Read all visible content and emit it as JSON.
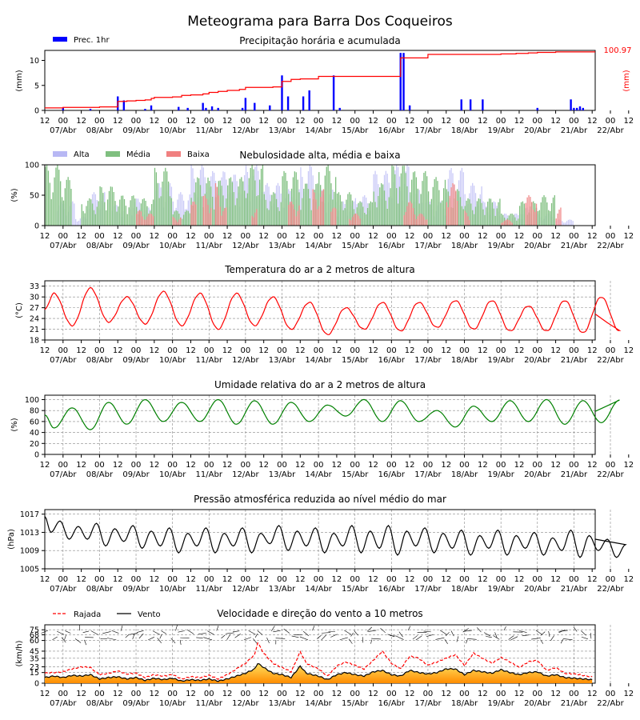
{
  "title": "Meteograma para Barra Dos Coqueiros",
  "x_axis": {
    "hour_ticks": [
      "12",
      "00",
      "12",
      "00",
      "12",
      "00",
      "12",
      "00",
      "12",
      "00",
      "12",
      "00",
      "12",
      "00",
      "12",
      "00",
      "12",
      "00",
      "12",
      "00",
      "12",
      "00",
      "12",
      "00",
      "12",
      "00",
      "12",
      "00",
      "12",
      "00",
      "12",
      "00",
      "12"
    ],
    "date_labels": [
      "07/Abr",
      "08/Abr",
      "09/Abr",
      "10/Abr",
      "11/Abr",
      "12/Abr",
      "13/Abr",
      "14/Abr",
      "15/Abr",
      "16/Abr",
      "17/Abr",
      "18/Abr",
      "19/Abr",
      "20/Abr",
      "21/Abr",
      "22/Abr"
    ]
  },
  "chart_data": [
    {
      "type": "bar",
      "title": "Precipitação horária e acumulada",
      "ylabel": "(mm)",
      "ylabel_right": "(mm)",
      "right_value_label": "100.97",
      "ylim": [
        0,
        12
      ],
      "yticks": [
        0,
        5,
        10
      ],
      "legend": [
        "Prec. 1hr"
      ],
      "colors": {
        "bars": "#0000ff",
        "accum": "#ff0000"
      },
      "series": [
        {
          "name": "Prec. 1hr",
          "x_hours": [
            12,
            30,
            48,
            52,
            66,
            70,
            88,
            94,
            104,
            106,
            110,
            114,
            130,
            132,
            138,
            148,
            156,
            160,
            170,
            174,
            190,
            194,
            234,
            236,
            240,
            274,
            280,
            288,
            324,
            346,
            348,
            350,
            352,
            354
          ],
          "values": [
            0.5,
            0.3,
            2.8,
            2.0,
            0.3,
            1.0,
            0.7,
            0.5,
            1.5,
            0.5,
            0.8,
            0.5,
            0.5,
            2.5,
            1.5,
            1.0,
            7.0,
            2.8,
            2.8,
            4.0,
            7.0,
            0.5,
            11.5,
            11.5,
            1.0,
            2.2,
            2.2,
            2.2,
            0.5,
            2.2,
            0.5,
            0.5,
            0.8,
            0.5
          ]
        }
      ],
      "accumulated_steps": [
        [
          0,
          0.5
        ],
        [
          12,
          0.6
        ],
        [
          36,
          0.7
        ],
        [
          48,
          1.8
        ],
        [
          54,
          1.9
        ],
        [
          60,
          2.0
        ],
        [
          66,
          2.1
        ],
        [
          70,
          2.4
        ],
        [
          72,
          2.6
        ],
        [
          84,
          2.7
        ],
        [
          90,
          3.0
        ],
        [
          96,
          3.1
        ],
        [
          104,
          3.3
        ],
        [
          108,
          3.6
        ],
        [
          114,
          3.8
        ],
        [
          120,
          4.0
        ],
        [
          128,
          4.2
        ],
        [
          132,
          4.6
        ],
        [
          150,
          4.7
        ],
        [
          156,
          5.8
        ],
        [
          162,
          6.2
        ],
        [
          168,
          6.3
        ],
        [
          180,
          6.8
        ],
        [
          216,
          6.8
        ],
        [
          232,
          6.8
        ],
        [
          234,
          10.5
        ],
        [
          248,
          10.5
        ],
        [
          252,
          11.2
        ],
        [
          300,
          11.3
        ],
        [
          310,
          11.4
        ],
        [
          318,
          11.5
        ],
        [
          324,
          11.6
        ],
        [
          336,
          11.7
        ],
        [
          352,
          11.7
        ]
      ]
    },
    {
      "type": "bar",
      "title": "Nebulosidade alta, média e baixa",
      "ylabel": "(%)",
      "ylim": [
        0,
        100
      ],
      "yticks": [
        0,
        50,
        100
      ],
      "legend": [
        "Alta",
        "Média",
        "Baixa"
      ],
      "colors": {
        "Alta": "#b8b8f4",
        "Média": "#7fbf7f",
        "Baixa": "#f08080"
      },
      "high_cloud_blocks": [
        [
          8,
          20,
          40
        ],
        [
          20,
          28,
          15
        ],
        [
          28,
          40,
          55
        ],
        [
          44,
          52,
          35
        ],
        [
          56,
          64,
          45
        ],
        [
          64,
          72,
          30
        ],
        [
          72,
          84,
          70
        ],
        [
          84,
          96,
          55
        ],
        [
          96,
          108,
          100
        ],
        [
          108,
          120,
          90
        ],
        [
          120,
          132,
          85
        ],
        [
          132,
          144,
          100
        ],
        [
          144,
          156,
          70
        ],
        [
          156,
          168,
          60
        ],
        [
          168,
          180,
          100
        ],
        [
          180,
          192,
          60
        ],
        [
          192,
          204,
          40
        ],
        [
          204,
          216,
          50
        ],
        [
          216,
          228,
          90
        ],
        [
          228,
          240,
          100
        ],
        [
          240,
          252,
          60
        ],
        [
          252,
          264,
          40
        ],
        [
          264,
          276,
          95
        ],
        [
          276,
          288,
          70
        ],
        [
          288,
          300,
          40
        ],
        [
          300,
          312,
          20
        ],
        [
          312,
          324,
          30
        ],
        [
          324,
          336,
          20
        ],
        [
          336,
          348,
          10
        ]
      ],
      "mid_cloud_blocks": [
        [
          0,
          12,
          100
        ],
        [
          12,
          18,
          80
        ],
        [
          24,
          36,
          45
        ],
        [
          36,
          48,
          65
        ],
        [
          48,
          60,
          50
        ],
        [
          60,
          72,
          45
        ],
        [
          72,
          84,
          95
        ],
        [
          84,
          96,
          25
        ],
        [
          96,
          108,
          80
        ],
        [
          108,
          120,
          75
        ],
        [
          120,
          132,
          80
        ],
        [
          132,
          144,
          100
        ],
        [
          144,
          156,
          55
        ],
        [
          156,
          168,
          90
        ],
        [
          168,
          180,
          70
        ],
        [
          180,
          192,
          100
        ],
        [
          192,
          204,
          55
        ],
        [
          204,
          216,
          40
        ],
        [
          216,
          228,
          70
        ],
        [
          228,
          240,
          100
        ],
        [
          240,
          252,
          90
        ],
        [
          252,
          264,
          80
        ],
        [
          264,
          276,
          60
        ],
        [
          276,
          288,
          45
        ],
        [
          288,
          300,
          45
        ],
        [
          300,
          312,
          20
        ],
        [
          312,
          324,
          40
        ],
        [
          324,
          336,
          50
        ]
      ],
      "low_cloud_blocks": [
        [
          60,
          64,
          25
        ],
        [
          64,
          72,
          20
        ],
        [
          84,
          90,
          15
        ],
        [
          96,
          100,
          40
        ],
        [
          104,
          110,
          50
        ],
        [
          112,
          116,
          70
        ],
        [
          116,
          120,
          30
        ],
        [
          136,
          140,
          30
        ],
        [
          160,
          168,
          40
        ],
        [
          176,
          184,
          60
        ],
        [
          188,
          192,
          30
        ],
        [
          200,
          208,
          20
        ],
        [
          236,
          244,
          40
        ],
        [
          244,
          252,
          20
        ],
        [
          264,
          272,
          70
        ],
        [
          276,
          280,
          25
        ],
        [
          300,
          308,
          10
        ],
        [
          316,
          324,
          50
        ],
        [
          336,
          340,
          30
        ]
      ]
    },
    {
      "type": "line",
      "title": "Temperatura do ar a 2 metros de altura",
      "ylabel": "(°C)",
      "ylim": [
        18,
        34.5
      ],
      "yticks": [
        18,
        21,
        24,
        27,
        30,
        33
      ],
      "colors": {
        "line": "#ff0000"
      },
      "daily_max": [
        31.0,
        32.5,
        30.0,
        31.5,
        31.0,
        31.0,
        30.0,
        28.5,
        27.0,
        28.5,
        28.5,
        29.0,
        29.0,
        27.5,
        29.0,
        30.0
      ],
      "daily_min": [
        22.0,
        23.0,
        22.5,
        22.0,
        21.0,
        22.0,
        21.0,
        19.5,
        21.0,
        20.5,
        21.5,
        21.0,
        20.5,
        20.5,
        20.0,
        20.5
      ]
    },
    {
      "type": "line",
      "title": "Umidade relativa do ar a 2 metros de altura",
      "ylabel": "(%)",
      "ylim": [
        0,
        108
      ],
      "yticks": [
        0,
        20,
        40,
        60,
        80,
        100
      ],
      "colors": {
        "line": "#008000"
      },
      "daily_max": [
        85,
        95,
        100,
        95,
        100,
        98,
        95,
        90,
        100,
        98,
        80,
        88,
        98,
        100,
        98,
        99
      ],
      "daily_min": [
        48,
        45,
        55,
        60,
        60,
        55,
        55,
        60,
        70,
        60,
        60,
        50,
        60,
        60,
        55,
        58
      ]
    },
    {
      "type": "line",
      "title": "Pressão atmosférica reduzida ao nível médio do mar",
      "ylabel": "(hPa)",
      "ylim": [
        1005,
        1018
      ],
      "yticks": [
        1005,
        1009,
        1013,
        1017
      ],
      "colors": {
        "line": "#000000"
      },
      "start_value": 1016.5,
      "daily_max": [
        1015.5,
        1015.0,
        1014.5,
        1014.0,
        1014.0,
        1014.0,
        1014.5,
        1014.0,
        1014.5,
        1014.5,
        1014.0,
        1013.5,
        1013.5,
        1013.0,
        1013.5,
        1011.5
      ],
      "daily_min": [
        1011.5,
        1010.0,
        1009.5,
        1008.5,
        1008.5,
        1008.5,
        1009.0,
        1008.5,
        1008.5,
        1008.0,
        1008.5,
        1008.0,
        1008.0,
        1008.0,
        1007.5,
        1007.5
      ]
    },
    {
      "type": "area",
      "title": "Velocidade e direção do vento a 10 metros",
      "ylabel": "(km/h)",
      "ylim": [
        0,
        82
      ],
      "yticks": [
        0,
        15,
        23,
        35,
        45,
        60,
        68,
        75
      ],
      "legend": [
        "Rajada",
        "Vento"
      ],
      "colors": {
        "gust": "#ff0000",
        "wind": "#000000",
        "fill_low": "#ffd700",
        "fill_high": "#ff8c00"
      },
      "wind_profile": [
        [
          0,
          8
        ],
        [
          6,
          10
        ],
        [
          12,
          8
        ],
        [
          18,
          11
        ],
        [
          24,
          10
        ],
        [
          30,
          12
        ],
        [
          36,
          6
        ],
        [
          42,
          8
        ],
        [
          48,
          9
        ],
        [
          54,
          6
        ],
        [
          60,
          8
        ],
        [
          66,
          4
        ],
        [
          72,
          7
        ],
        [
          78,
          5
        ],
        [
          84,
          7
        ],
        [
          90,
          3
        ],
        [
          96,
          5
        ],
        [
          102,
          4
        ],
        [
          108,
          6
        ],
        [
          114,
          3
        ],
        [
          120,
          6
        ],
        [
          126,
          10
        ],
        [
          132,
          14
        ],
        [
          138,
          20
        ],
        [
          140,
          28
        ],
        [
          144,
          22
        ],
        [
          150,
          14
        ],
        [
          156,
          12
        ],
        [
          162,
          8
        ],
        [
          168,
          24
        ],
        [
          172,
          14
        ],
        [
          180,
          10
        ],
        [
          186,
          5
        ],
        [
          192,
          12
        ],
        [
          198,
          15
        ],
        [
          204,
          12
        ],
        [
          210,
          10
        ],
        [
          216,
          16
        ],
        [
          222,
          18
        ],
        [
          228,
          12
        ],
        [
          234,
          10
        ],
        [
          240,
          18
        ],
        [
          246,
          15
        ],
        [
          252,
          13
        ],
        [
          258,
          15
        ],
        [
          264,
          20
        ],
        [
          270,
          20
        ],
        [
          276,
          12
        ],
        [
          282,
          18
        ],
        [
          288,
          16
        ],
        [
          294,
          14
        ],
        [
          300,
          19
        ],
        [
          306,
          15
        ],
        [
          312,
          12
        ],
        [
          318,
          15
        ],
        [
          324,
          16
        ],
        [
          330,
          10
        ],
        [
          336,
          12
        ],
        [
          342,
          8
        ],
        [
          348,
          7
        ],
        [
          354,
          6
        ],
        [
          360,
          5
        ]
      ],
      "gust_profile": [
        [
          0,
          14
        ],
        [
          6,
          15
        ],
        [
          12,
          16
        ],
        [
          18,
          20
        ],
        [
          24,
          23
        ],
        [
          30,
          22
        ],
        [
          36,
          12
        ],
        [
          42,
          14
        ],
        [
          48,
          17
        ],
        [
          54,
          13
        ],
        [
          60,
          14
        ],
        [
          66,
          8
        ],
        [
          72,
          12
        ],
        [
          78,
          10
        ],
        [
          84,
          12
        ],
        [
          90,
          6
        ],
        [
          96,
          9
        ],
        [
          102,
          8
        ],
        [
          108,
          11
        ],
        [
          114,
          6
        ],
        [
          120,
          12
        ],
        [
          126,
          20
        ],
        [
          132,
          28
        ],
        [
          138,
          40
        ],
        [
          140,
          57
        ],
        [
          144,
          42
        ],
        [
          150,
          28
        ],
        [
          156,
          22
        ],
        [
          162,
          16
        ],
        [
          168,
          44
        ],
        [
          172,
          28
        ],
        [
          180,
          20
        ],
        [
          186,
          10
        ],
        [
          192,
          24
        ],
        [
          198,
          30
        ],
        [
          204,
          25
        ],
        [
          210,
          20
        ],
        [
          216,
          32
        ],
        [
          222,
          45
        ],
        [
          228,
          28
        ],
        [
          234,
          20
        ],
        [
          240,
          38
        ],
        [
          246,
          35
        ],
        [
          252,
          25
        ],
        [
          258,
          30
        ],
        [
          264,
          35
        ],
        [
          270,
          40
        ],
        [
          276,
          25
        ],
        [
          282,
          42
        ],
        [
          288,
          35
        ],
        [
          294,
          28
        ],
        [
          300,
          36
        ],
        [
          306,
          30
        ],
        [
          312,
          22
        ],
        [
          318,
          30
        ],
        [
          324,
          32
        ],
        [
          330,
          18
        ],
        [
          336,
          22
        ],
        [
          342,
          14
        ],
        [
          348,
          13
        ],
        [
          354,
          11
        ],
        [
          360,
          9
        ]
      ],
      "wind_barb_band_kmh": [
        60,
        75
      ]
    }
  ]
}
